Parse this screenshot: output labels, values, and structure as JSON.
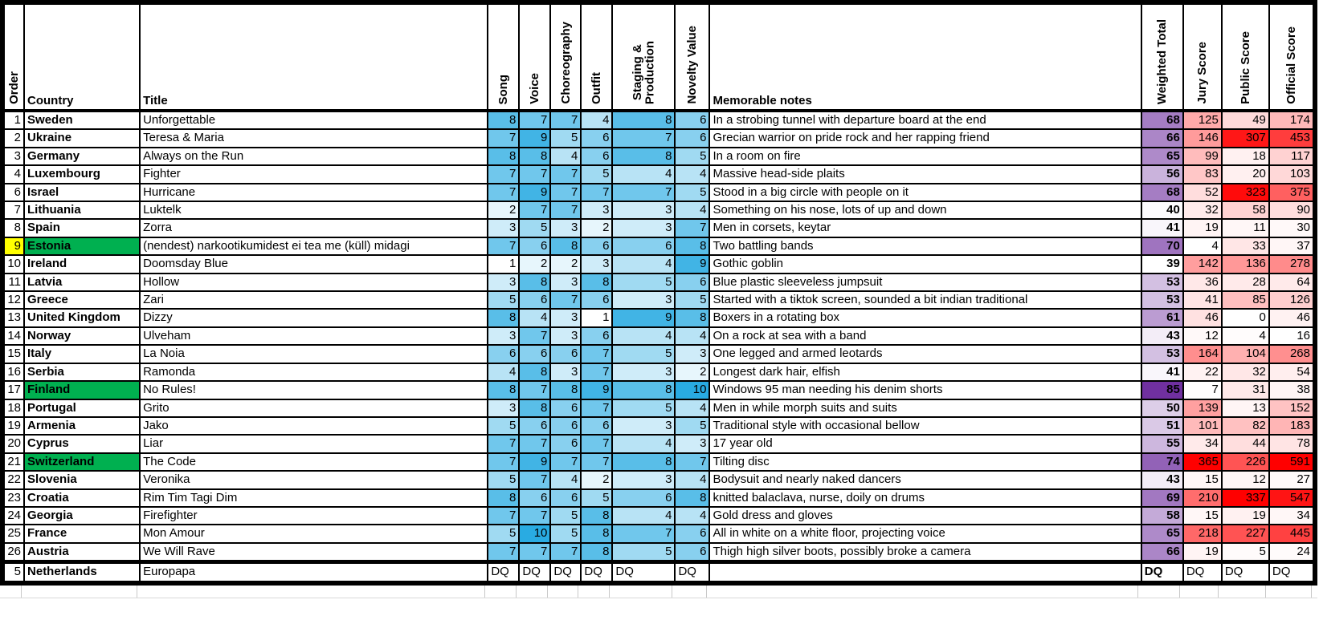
{
  "columns": {
    "order": "Order",
    "country": "Country",
    "title": "Title",
    "scores": [
      "Song",
      "Voice",
      "Choreography",
      "Outfit",
      "Staging &\nProduction",
      "Novelty Value"
    ],
    "notes": "Memorable notes",
    "totals": [
      "Weighted Total",
      "Jury Score",
      "Public Score",
      "Official Score"
    ]
  },
  "colors": {
    "score_scale_max": "#29ABE2",
    "weighted_scale_max": "#7030A0",
    "totals_scale_max": "#FF0000",
    "scale_min": "#FFFFFF",
    "country_highlight": "#00B050",
    "order_highlight": "#FFFF00"
  },
  "rows": [
    {
      "order": 1,
      "country": "Sweden",
      "title": "Unforgettable",
      "song": 8,
      "voice": 7,
      "choreography": 7,
      "outfit": 4,
      "staging": 8,
      "novelty": 6,
      "notes": "In a strobing tunnel with departure board at the end",
      "weighted": 68,
      "jury": 125,
      "public": 49,
      "official": 174
    },
    {
      "order": 2,
      "country": "Ukraine",
      "title": "Teresa & Maria",
      "song": 7,
      "voice": 9,
      "choreography": 5,
      "outfit": 6,
      "staging": 7,
      "novelty": 6,
      "notes": "Grecian warrior on pride rock and her rapping friend",
      "weighted": 66,
      "jury": 146,
      "public": 307,
      "official": 453
    },
    {
      "order": 3,
      "country": "Germany",
      "title": "Always on the Run",
      "song": 8,
      "voice": 8,
      "choreography": 4,
      "outfit": 6,
      "staging": 8,
      "novelty": 5,
      "notes": "In a room on fire",
      "weighted": 65,
      "jury": 99,
      "public": 18,
      "official": 117
    },
    {
      "order": 4,
      "country": "Luxembourg",
      "title": "Fighter",
      "song": 7,
      "voice": 7,
      "choreography": 7,
      "outfit": 5,
      "staging": 4,
      "novelty": 4,
      "notes": "Massive head-side plaits",
      "weighted": 56,
      "jury": 83,
      "public": 20,
      "official": 103
    },
    {
      "order": 6,
      "country": "Israel",
      "title": "Hurricane",
      "song": 7,
      "voice": 9,
      "choreography": 7,
      "outfit": 7,
      "staging": 7,
      "novelty": 5,
      "notes": "Stood in a big circle with people on it",
      "weighted": 68,
      "jury": 52,
      "public": 323,
      "official": 375
    },
    {
      "order": 7,
      "country": "Lithuania",
      "title": "Luktelk",
      "song": 2,
      "voice": 7,
      "choreography": 7,
      "outfit": 3,
      "staging": 3,
      "novelty": 4,
      "notes": "Something on his nose, lots of up and down",
      "weighted": 40,
      "jury": 32,
      "public": 58,
      "official": 90
    },
    {
      "order": 8,
      "country": "Spain",
      "title": "Zorra",
      "song": 3,
      "voice": 5,
      "choreography": 3,
      "outfit": 2,
      "staging": 3,
      "novelty": 7,
      "notes": "Men in corsets, keytar",
      "weighted": 41,
      "jury": 19,
      "public": 11,
      "official": 30
    },
    {
      "order": 9,
      "country": "Estonia",
      "title": "(nendest) narkootikumidest ei tea me (küll) midagi",
      "song": 7,
      "voice": 6,
      "choreography": 8,
      "outfit": 6,
      "staging": 6,
      "novelty": 8,
      "notes": "Two battling bands",
      "weighted": 70,
      "jury": 4,
      "public": 33,
      "official": 37,
      "order_highlighted": true,
      "country_highlighted": true
    },
    {
      "order": 10,
      "country": "Ireland",
      "title": "Doomsday Blue",
      "song": 1,
      "voice": 2,
      "choreography": 2,
      "outfit": 3,
      "staging": 4,
      "novelty": 9,
      "notes": "Gothic goblin",
      "weighted": 39,
      "jury": 142,
      "public": 136,
      "official": 278
    },
    {
      "order": 11,
      "country": "Latvia",
      "title": "Hollow",
      "song": 3,
      "voice": 8,
      "choreography": 3,
      "outfit": 8,
      "staging": 5,
      "novelty": 6,
      "notes": "Blue plastic sleeveless jumpsuit",
      "weighted": 53,
      "jury": 36,
      "public": 28,
      "official": 64
    },
    {
      "order": 12,
      "country": "Greece",
      "title": "Zari",
      "song": 5,
      "voice": 6,
      "choreography": 7,
      "outfit": 6,
      "staging": 3,
      "novelty": 5,
      "notes": "Started with a tiktok screen, sounded a bit indian traditional",
      "weighted": 53,
      "jury": 41,
      "public": 85,
      "official": 126
    },
    {
      "order": 13,
      "country": "United Kingdom",
      "title": "Dizzy",
      "song": 8,
      "voice": 4,
      "choreography": 3,
      "outfit": 1,
      "staging": 9,
      "novelty": 8,
      "notes": "Boxers in a rotating box",
      "weighted": 61,
      "jury": 46,
      "public": 0,
      "official": 46
    },
    {
      "order": 14,
      "country": "Norway",
      "title": "Ulveham",
      "song": 3,
      "voice": 7,
      "choreography": 3,
      "outfit": 6,
      "staging": 4,
      "novelty": 4,
      "notes": "On a rock at sea with a band",
      "weighted": 43,
      "jury": 12,
      "public": 4,
      "official": 16
    },
    {
      "order": 15,
      "country": "Italy",
      "title": "La Noia",
      "song": 6,
      "voice": 6,
      "choreography": 6,
      "outfit": 7,
      "staging": 5,
      "novelty": 3,
      "notes": "One legged and armed leotards",
      "weighted": 53,
      "jury": 164,
      "public": 104,
      "official": 268
    },
    {
      "order": 16,
      "country": "Serbia",
      "title": "Ramonda",
      "song": 4,
      "voice": 8,
      "choreography": 3,
      "outfit": 7,
      "staging": 3,
      "novelty": 2,
      "notes": "Longest dark hair, elfish",
      "weighted": 41,
      "jury": 22,
      "public": 32,
      "official": 54
    },
    {
      "order": 17,
      "country": "Finland",
      "title": "No Rules!",
      "song": 8,
      "voice": 7,
      "choreography": 8,
      "outfit": 9,
      "staging": 8,
      "novelty": 10,
      "notes": "Windows 95 man needing his denim shorts",
      "weighted": 85,
      "jury": 7,
      "public": 31,
      "official": 38,
      "country_highlighted": true
    },
    {
      "order": 18,
      "country": "Portugal",
      "title": "Grito",
      "song": 3,
      "voice": 8,
      "choreography": 6,
      "outfit": 7,
      "staging": 5,
      "novelty": 4,
      "notes": "Men in while morph suits and suits",
      "weighted": 50,
      "jury": 139,
      "public": 13,
      "official": 152
    },
    {
      "order": 19,
      "country": "Armenia",
      "title": "Jako",
      "song": 5,
      "voice": 6,
      "choreography": 6,
      "outfit": 6,
      "staging": 3,
      "novelty": 5,
      "notes": "Traditional style with occasional bellow",
      "weighted": 51,
      "jury": 101,
      "public": 82,
      "official": 183
    },
    {
      "order": 20,
      "country": "Cyprus",
      "title": "Liar",
      "song": 7,
      "voice": 7,
      "choreography": 6,
      "outfit": 7,
      "staging": 4,
      "novelty": 3,
      "notes": "17 year old",
      "weighted": 55,
      "jury": 34,
      "public": 44,
      "official": 78
    },
    {
      "order": 21,
      "country": "Switzerland",
      "title": "The Code",
      "song": 7,
      "voice": 9,
      "choreography": 7,
      "outfit": 7,
      "staging": 8,
      "novelty": 7,
      "notes": "Tilting disc",
      "weighted": 74,
      "jury": 365,
      "public": 226,
      "official": 591,
      "country_highlighted": true
    },
    {
      "order": 22,
      "country": "Slovenia",
      "title": "Veronika",
      "song": 5,
      "voice": 7,
      "choreography": 4,
      "outfit": 2,
      "staging": 3,
      "novelty": 4,
      "notes": "Bodysuit and nearly naked dancers",
      "weighted": 43,
      "jury": 15,
      "public": 12,
      "official": 27
    },
    {
      "order": 23,
      "country": "Croatia",
      "title": "Rim Tim Tagi Dim",
      "song": 8,
      "voice": 6,
      "choreography": 6,
      "outfit": 5,
      "staging": 6,
      "novelty": 8,
      "notes": "knitted balaclava, nurse, doily on drums",
      "weighted": 69,
      "jury": 210,
      "public": 337,
      "official": 547
    },
    {
      "order": 24,
      "country": "Georgia",
      "title": "Firefighter",
      "song": 7,
      "voice": 7,
      "choreography": 5,
      "outfit": 8,
      "staging": 4,
      "novelty": 4,
      "notes": "Gold dress and gloves",
      "weighted": 58,
      "jury": 15,
      "public": 19,
      "official": 34
    },
    {
      "order": 25,
      "country": "France",
      "title": "Mon Amour",
      "song": 5,
      "voice": 10,
      "choreography": 5,
      "outfit": 8,
      "staging": 7,
      "novelty": 6,
      "notes": "All in white on a white floor, projecting voice",
      "weighted": 65,
      "jury": 218,
      "public": 227,
      "official": 445
    },
    {
      "order": 26,
      "country": "Austria",
      "title": "We Will Rave",
      "song": 7,
      "voice": 7,
      "choreography": 7,
      "outfit": 8,
      "staging": 5,
      "novelty": 6,
      "notes": "Thigh high silver boots, possibly broke a camera",
      "weighted": 66,
      "jury": 19,
      "public": 5,
      "official": 24
    },
    {
      "order": 5,
      "country": "Netherlands",
      "title": "Europapa",
      "song": "DQ",
      "voice": "DQ",
      "choreography": "DQ",
      "outfit": "DQ",
      "staging": "DQ",
      "novelty": "DQ",
      "notes": "",
      "weighted": "DQ",
      "jury": "DQ",
      "public": "DQ",
      "official": "DQ",
      "dq_separator": true
    }
  ]
}
